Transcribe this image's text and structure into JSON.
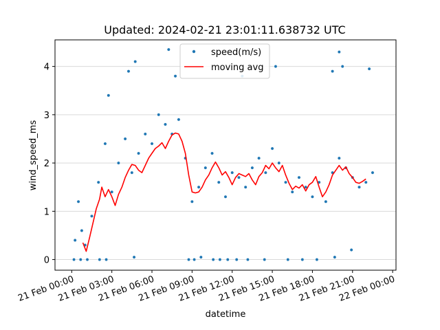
{
  "chart_data": {
    "type": "scatter",
    "title": "Updated: 2024-02-21 23:01:11.638732 UTC",
    "xlabel": "datetime",
    "ylabel": "wind_speed_ms",
    "x_axis": {
      "type": "datetime",
      "range": [
        "2024-02-20 22:45",
        "2024-02-22 00:15"
      ],
      "ticks": [
        {
          "value": "2024-02-21 00:00",
          "label": "21 Feb 00:00"
        },
        {
          "value": "2024-02-21 03:00",
          "label": "21 Feb 03:00"
        },
        {
          "value": "2024-02-21 06:00",
          "label": "21 Feb 06:00"
        },
        {
          "value": "2024-02-21 09:00",
          "label": "21 Feb 09:00"
        },
        {
          "value": "2024-02-21 12:00",
          "label": "21 Feb 12:00"
        },
        {
          "value": "2024-02-21 15:00",
          "label": "21 Feb 15:00"
        },
        {
          "value": "2024-02-21 18:00",
          "label": "21 Feb 18:00"
        },
        {
          "value": "2024-02-21 21:00",
          "label": "21 Feb 21:00"
        },
        {
          "value": "2024-02-22 00:00",
          "label": "22 Feb 00:00"
        }
      ]
    },
    "y_axis": {
      "range": [
        -0.22,
        4.55
      ],
      "ticks": [
        0,
        1,
        2,
        3,
        4
      ],
      "grid": true
    },
    "legend": {
      "placement": "top-center",
      "entries": [
        {
          "label": "speed(m/s)",
          "marker": "dot",
          "color": "#1f77b4"
        },
        {
          "label": "moving avg",
          "marker": "line",
          "color": "#ff0000"
        }
      ]
    },
    "series": [
      {
        "name": "speed(m/s)",
        "kind": "scatter",
        "color": "#1f77b4",
        "points": [
          [
            "2024-02-21 00:15",
            0.4
          ],
          [
            "2024-02-21 00:30",
            1.2
          ],
          [
            "2024-02-21 00:45",
            0.6
          ],
          [
            "2024-02-21 01:00",
            0.3
          ],
          [
            "2024-02-21 01:30",
            0.9
          ],
          [
            "2024-02-21 02:00",
            1.6
          ],
          [
            "2024-02-21 02:30",
            2.4
          ],
          [
            "2024-02-21 03:00",
            1.4
          ],
          [
            "2024-02-21 03:30",
            2.0
          ],
          [
            "2024-02-21 04:00",
            2.5
          ],
          [
            "2024-02-21 04:30",
            1.8
          ],
          [
            "2024-02-21 05:00",
            2.2
          ],
          [
            "2024-02-21 05:30",
            2.6
          ],
          [
            "2024-02-21 06:00",
            2.4
          ],
          [
            "2024-02-21 06:30",
            3.0
          ],
          [
            "2024-02-21 07:00",
            2.8
          ],
          [
            "2024-02-21 07:30",
            2.6
          ],
          [
            "2024-02-21 08:00",
            2.9
          ],
          [
            "2024-02-21 08:30",
            2.1
          ],
          [
            "2024-02-21 09:00",
            1.2
          ],
          [
            "2024-02-21 09:30",
            1.5
          ],
          [
            "2024-02-21 10:00",
            1.9
          ],
          [
            "2024-02-21 10:30",
            2.2
          ],
          [
            "2024-02-21 11:00",
            1.6
          ],
          [
            "2024-02-21 11:30",
            1.3
          ],
          [
            "2024-02-21 12:00",
            1.8
          ],
          [
            "2024-02-21 12:30",
            1.7
          ],
          [
            "2024-02-21 13:00",
            1.5
          ],
          [
            "2024-02-21 13:30",
            1.9
          ],
          [
            "2024-02-21 14:00",
            2.1
          ],
          [
            "2024-02-21 14:30",
            1.8
          ],
          [
            "2024-02-21 15:00",
            2.3
          ],
          [
            "2024-02-21 15:30",
            2.0
          ],
          [
            "2024-02-21 16:00",
            1.6
          ],
          [
            "2024-02-21 16:30",
            1.4
          ],
          [
            "2024-02-21 17:00",
            1.7
          ],
          [
            "2024-02-21 17:30",
            1.5
          ],
          [
            "2024-02-21 18:00",
            1.3
          ],
          [
            "2024-02-21 18:30",
            1.6
          ],
          [
            "2024-02-21 19:00",
            1.2
          ],
          [
            "2024-02-21 19:30",
            1.8
          ],
          [
            "2024-02-21 20:00",
            2.1
          ],
          [
            "2024-02-21 20:30",
            1.9
          ],
          [
            "2024-02-21 21:00",
            1.7
          ],
          [
            "2024-02-21 21:30",
            1.5
          ],
          [
            "2024-02-21 22:00",
            1.6
          ],
          [
            "2024-02-21 22:30",
            1.8
          ],
          [
            "2024-02-21 02:45",
            3.4
          ],
          [
            "2024-02-21 04:15",
            3.9
          ],
          [
            "2024-02-21 04:45",
            4.1
          ],
          [
            "2024-02-21 07:15",
            4.35
          ],
          [
            "2024-02-21 07:45",
            3.8
          ],
          [
            "2024-02-21 12:45",
            3.8
          ],
          [
            "2024-02-21 15:15",
            4.0
          ],
          [
            "2024-02-21 19:30",
            3.9
          ],
          [
            "2024-02-21 20:00",
            4.3
          ],
          [
            "2024-02-21 20:15",
            4.0
          ],
          [
            "2024-02-21 22:15",
            3.95
          ],
          [
            "2024-02-21 00:10",
            0.0
          ],
          [
            "2024-02-21 00:40",
            0.0
          ],
          [
            "2024-02-21 01:10",
            0.0
          ],
          [
            "2024-02-21 02:05",
            0.0
          ],
          [
            "2024-02-21 02:35",
            0.0
          ],
          [
            "2024-02-21 04:40",
            0.05
          ],
          [
            "2024-02-21 08:45",
            0.0
          ],
          [
            "2024-02-21 09:10",
            0.0
          ],
          [
            "2024-02-21 09:40",
            0.05
          ],
          [
            "2024-02-21 10:35",
            0.0
          ],
          [
            "2024-02-21 11:05",
            0.0
          ],
          [
            "2024-02-21 11:40",
            0.0
          ],
          [
            "2024-02-21 12:20",
            0.0
          ],
          [
            "2024-02-21 13:10",
            0.0
          ],
          [
            "2024-02-21 14:25",
            0.0
          ],
          [
            "2024-02-21 16:10",
            0.0
          ],
          [
            "2024-02-21 17:15",
            0.0
          ],
          [
            "2024-02-21 18:20",
            0.0
          ],
          [
            "2024-02-21 19:40",
            0.05
          ],
          [
            "2024-02-21 20:55",
            0.2
          ]
        ]
      },
      {
        "name": "moving avg",
        "kind": "line",
        "color": "#ff0000",
        "points": [
          [
            "2024-02-21 00:50",
            0.35
          ],
          [
            "2024-02-21 01:05",
            0.17
          ],
          [
            "2024-02-21 01:20",
            0.45
          ],
          [
            "2024-02-21 01:35",
            0.75
          ],
          [
            "2024-02-21 01:50",
            1.05
          ],
          [
            "2024-02-21 02:05",
            1.25
          ],
          [
            "2024-02-21 02:15",
            1.5
          ],
          [
            "2024-02-21 02:30",
            1.3
          ],
          [
            "2024-02-21 02:45",
            1.45
          ],
          [
            "2024-02-21 03:00",
            1.3
          ],
          [
            "2024-02-21 03:15",
            1.12
          ],
          [
            "2024-02-21 03:30",
            1.35
          ],
          [
            "2024-02-21 03:45",
            1.5
          ],
          [
            "2024-02-21 04:00",
            1.7
          ],
          [
            "2024-02-21 04:15",
            1.85
          ],
          [
            "2024-02-21 04:30",
            1.97
          ],
          [
            "2024-02-21 04:45",
            1.95
          ],
          [
            "2024-02-21 05:00",
            1.85
          ],
          [
            "2024-02-21 05:15",
            1.8
          ],
          [
            "2024-02-21 05:30",
            1.95
          ],
          [
            "2024-02-21 05:45",
            2.1
          ],
          [
            "2024-02-21 06:00",
            2.2
          ],
          [
            "2024-02-21 06:15",
            2.3
          ],
          [
            "2024-02-21 06:30",
            2.35
          ],
          [
            "2024-02-21 06:45",
            2.42
          ],
          [
            "2024-02-21 07:00",
            2.3
          ],
          [
            "2024-02-21 07:15",
            2.45
          ],
          [
            "2024-02-21 07:30",
            2.58
          ],
          [
            "2024-02-21 07:45",
            2.62
          ],
          [
            "2024-02-21 08:00",
            2.6
          ],
          [
            "2024-02-21 08:15",
            2.45
          ],
          [
            "2024-02-21 08:30",
            2.2
          ],
          [
            "2024-02-21 08:45",
            1.75
          ],
          [
            "2024-02-21 09:00",
            1.4
          ],
          [
            "2024-02-21 09:15",
            1.38
          ],
          [
            "2024-02-21 09:30",
            1.4
          ],
          [
            "2024-02-21 09:45",
            1.5
          ],
          [
            "2024-02-21 10:00",
            1.65
          ],
          [
            "2024-02-21 10:15",
            1.75
          ],
          [
            "2024-02-21 10:30",
            1.9
          ],
          [
            "2024-02-21 10:45",
            2.02
          ],
          [
            "2024-02-21 11:00",
            1.9
          ],
          [
            "2024-02-21 11:15",
            1.75
          ],
          [
            "2024-02-21 11:30",
            1.82
          ],
          [
            "2024-02-21 11:45",
            1.7
          ],
          [
            "2024-02-21 12:00",
            1.55
          ],
          [
            "2024-02-21 12:15",
            1.7
          ],
          [
            "2024-02-21 12:30",
            1.78
          ],
          [
            "2024-02-21 12:45",
            1.75
          ],
          [
            "2024-02-21 13:00",
            1.72
          ],
          [
            "2024-02-21 13:15",
            1.78
          ],
          [
            "2024-02-21 13:30",
            1.65
          ],
          [
            "2024-02-21 13:45",
            1.55
          ],
          [
            "2024-02-21 14:00",
            1.72
          ],
          [
            "2024-02-21 14:15",
            1.8
          ],
          [
            "2024-02-21 14:30",
            1.95
          ],
          [
            "2024-02-21 14:45",
            1.88
          ],
          [
            "2024-02-21 15:00",
            2.0
          ],
          [
            "2024-02-21 15:15",
            1.9
          ],
          [
            "2024-02-21 15:30",
            1.82
          ],
          [
            "2024-02-21 15:45",
            1.95
          ],
          [
            "2024-02-21 16:00",
            1.75
          ],
          [
            "2024-02-21 16:15",
            1.58
          ],
          [
            "2024-02-21 16:30",
            1.45
          ],
          [
            "2024-02-21 16:45",
            1.52
          ],
          [
            "2024-02-21 17:00",
            1.48
          ],
          [
            "2024-02-21 17:15",
            1.55
          ],
          [
            "2024-02-21 17:30",
            1.42
          ],
          [
            "2024-02-21 17:45",
            1.55
          ],
          [
            "2024-02-21 18:00",
            1.6
          ],
          [
            "2024-02-21 18:15",
            1.72
          ],
          [
            "2024-02-21 18:30",
            1.5
          ],
          [
            "2024-02-21 18:45",
            1.3
          ],
          [
            "2024-02-21 19:00",
            1.4
          ],
          [
            "2024-02-21 19:15",
            1.55
          ],
          [
            "2024-02-21 19:30",
            1.75
          ],
          [
            "2024-02-21 19:45",
            1.85
          ],
          [
            "2024-02-21 20:00",
            1.95
          ],
          [
            "2024-02-21 20:15",
            1.85
          ],
          [
            "2024-02-21 20:30",
            1.92
          ],
          [
            "2024-02-21 20:45",
            1.78
          ],
          [
            "2024-02-21 21:00",
            1.7
          ],
          [
            "2024-02-21 21:15",
            1.6
          ],
          [
            "2024-02-21 21:30",
            1.58
          ],
          [
            "2024-02-21 21:45",
            1.62
          ],
          [
            "2024-02-21 22:00",
            1.67
          ]
        ]
      }
    ]
  }
}
